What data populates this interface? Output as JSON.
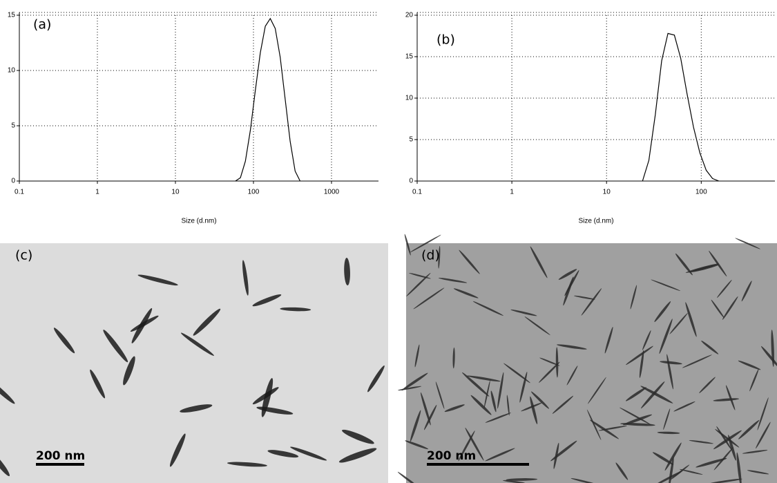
{
  "chart_data": [
    {
      "type": "line",
      "annotation": "(a)",
      "x_label": "Size (d.nm)",
      "log_x": true,
      "grid": true,
      "color": "#000000",
      "x": [
        58.8,
        68.1,
        78.8,
        91.3,
        105.7,
        122.4,
        141.8,
        164.2,
        190.1,
        220.2,
        255,
        295.3,
        342,
        396
      ],
      "values": [
        0,
        0.3,
        1.8,
        4.6,
        8.2,
        11.6,
        14,
        14.7,
        13.8,
        11.2,
        7.4,
        3.6,
        0.9,
        0
      ],
      "xlim": [
        0.1,
        4000
      ],
      "xticks": [
        0.1,
        1,
        10,
        100,
        1000
      ],
      "ylim": [
        0,
        15
      ],
      "yticks": [
        0,
        5,
        10,
        15
      ]
    },
    {
      "type": "line",
      "annotation": "(b)",
      "x_label": "Size (d.nm)",
      "log_x": true,
      "grid": true,
      "color": "#000000",
      "x": [
        24,
        28,
        32.7,
        38.2,
        44.5,
        52,
        60.7,
        70.9,
        82.8,
        96.6,
        112.8,
        131.7,
        153.8
      ],
      "values": [
        0,
        2.5,
        8,
        14.5,
        17.8,
        17.6,
        14.8,
        10.5,
        6.5,
        3.4,
        1.3,
        0.3,
        0
      ],
      "xlim": [
        0.1,
        600
      ],
      "xticks": [
        0.1,
        1,
        10,
        100
      ],
      "ylim": [
        0,
        20
      ],
      "yticks": [
        0,
        5,
        10,
        15,
        20
      ]
    }
  ],
  "images": [
    {
      "label": "(c)",
      "scale_bar": "200 nm"
    },
    {
      "label": "(d)",
      "scale_bar": "200 nm"
    }
  ]
}
